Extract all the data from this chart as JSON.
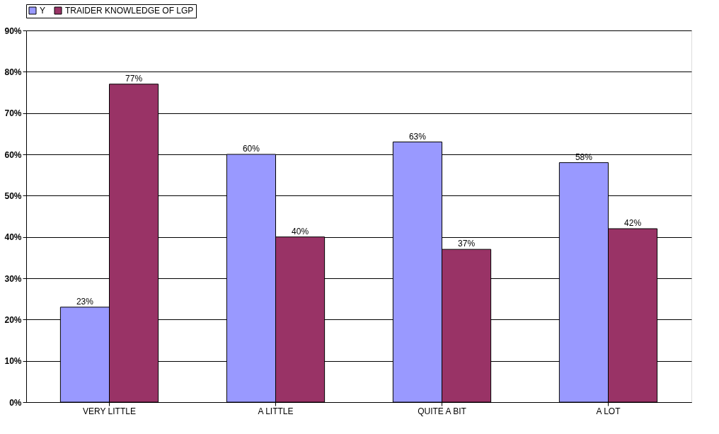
{
  "chart_data": {
    "type": "bar",
    "categories": [
      "VERY LITTLE",
      "A LITTLE",
      "QUITE A BIT",
      "A LOT"
    ],
    "series": [
      {
        "name": "Y",
        "color": "#9999ff",
        "values": [
          23,
          60,
          63,
          58
        ],
        "value_labels": [
          "23%",
          "60%",
          "63%",
          "58%"
        ]
      },
      {
        "name": "TRAIDER KNOWLEDGE OF LGP",
        "color": "#993366",
        "values": [
          77,
          40,
          37,
          42
        ],
        "value_labels": [
          "77%",
          "40%",
          "37%",
          "42%"
        ]
      }
    ],
    "ylim": [
      0,
      90
    ],
    "yticks": [
      {
        "value": 0,
        "label": "0%"
      },
      {
        "value": 10,
        "label": "10%"
      },
      {
        "value": 20,
        "label": "20%"
      },
      {
        "value": 30,
        "label": "30%"
      },
      {
        "value": 40,
        "label": "40%"
      },
      {
        "value": 50,
        "label": "50%"
      },
      {
        "value": 60,
        "label": "60%"
      },
      {
        "value": 70,
        "label": "70%"
      },
      {
        "value": 80,
        "label": "80%"
      },
      {
        "value": 90,
        "label": "90%"
      }
    ],
    "grid": "y",
    "legend": "top"
  }
}
